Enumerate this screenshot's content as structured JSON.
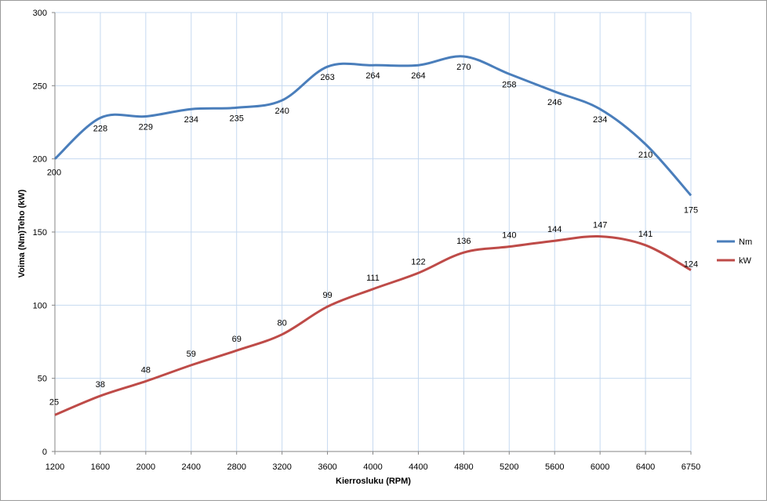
{
  "chart_data": {
    "type": "line",
    "title": "",
    "xlabel": "Kierrosluku (RPM)",
    "ylabel": "Voima (Nm)Teho (kW)",
    "categories": [
      "1200",
      "1600",
      "2000",
      "2400",
      "2800",
      "3200",
      "3600",
      "4000",
      "4400",
      "4800",
      "5200",
      "5600",
      "6000",
      "6400",
      "6750"
    ],
    "ylim": [
      0,
      300
    ],
    "yticks": [
      0,
      50,
      100,
      150,
      200,
      250,
      300
    ],
    "grid": true,
    "legend_position": "right",
    "series": [
      {
        "name": "Nm",
        "color": "#4a7ebb",
        "values": [
          200,
          228,
          229,
          234,
          235,
          240,
          263,
          264,
          264,
          270,
          258,
          246,
          234,
          210,
          175
        ]
      },
      {
        "name": "kW",
        "color": "#be4b48",
        "values": [
          25,
          38,
          48,
          59,
          69,
          80,
          99,
          111,
          122,
          136,
          140,
          144,
          147,
          141,
          124
        ]
      }
    ]
  }
}
